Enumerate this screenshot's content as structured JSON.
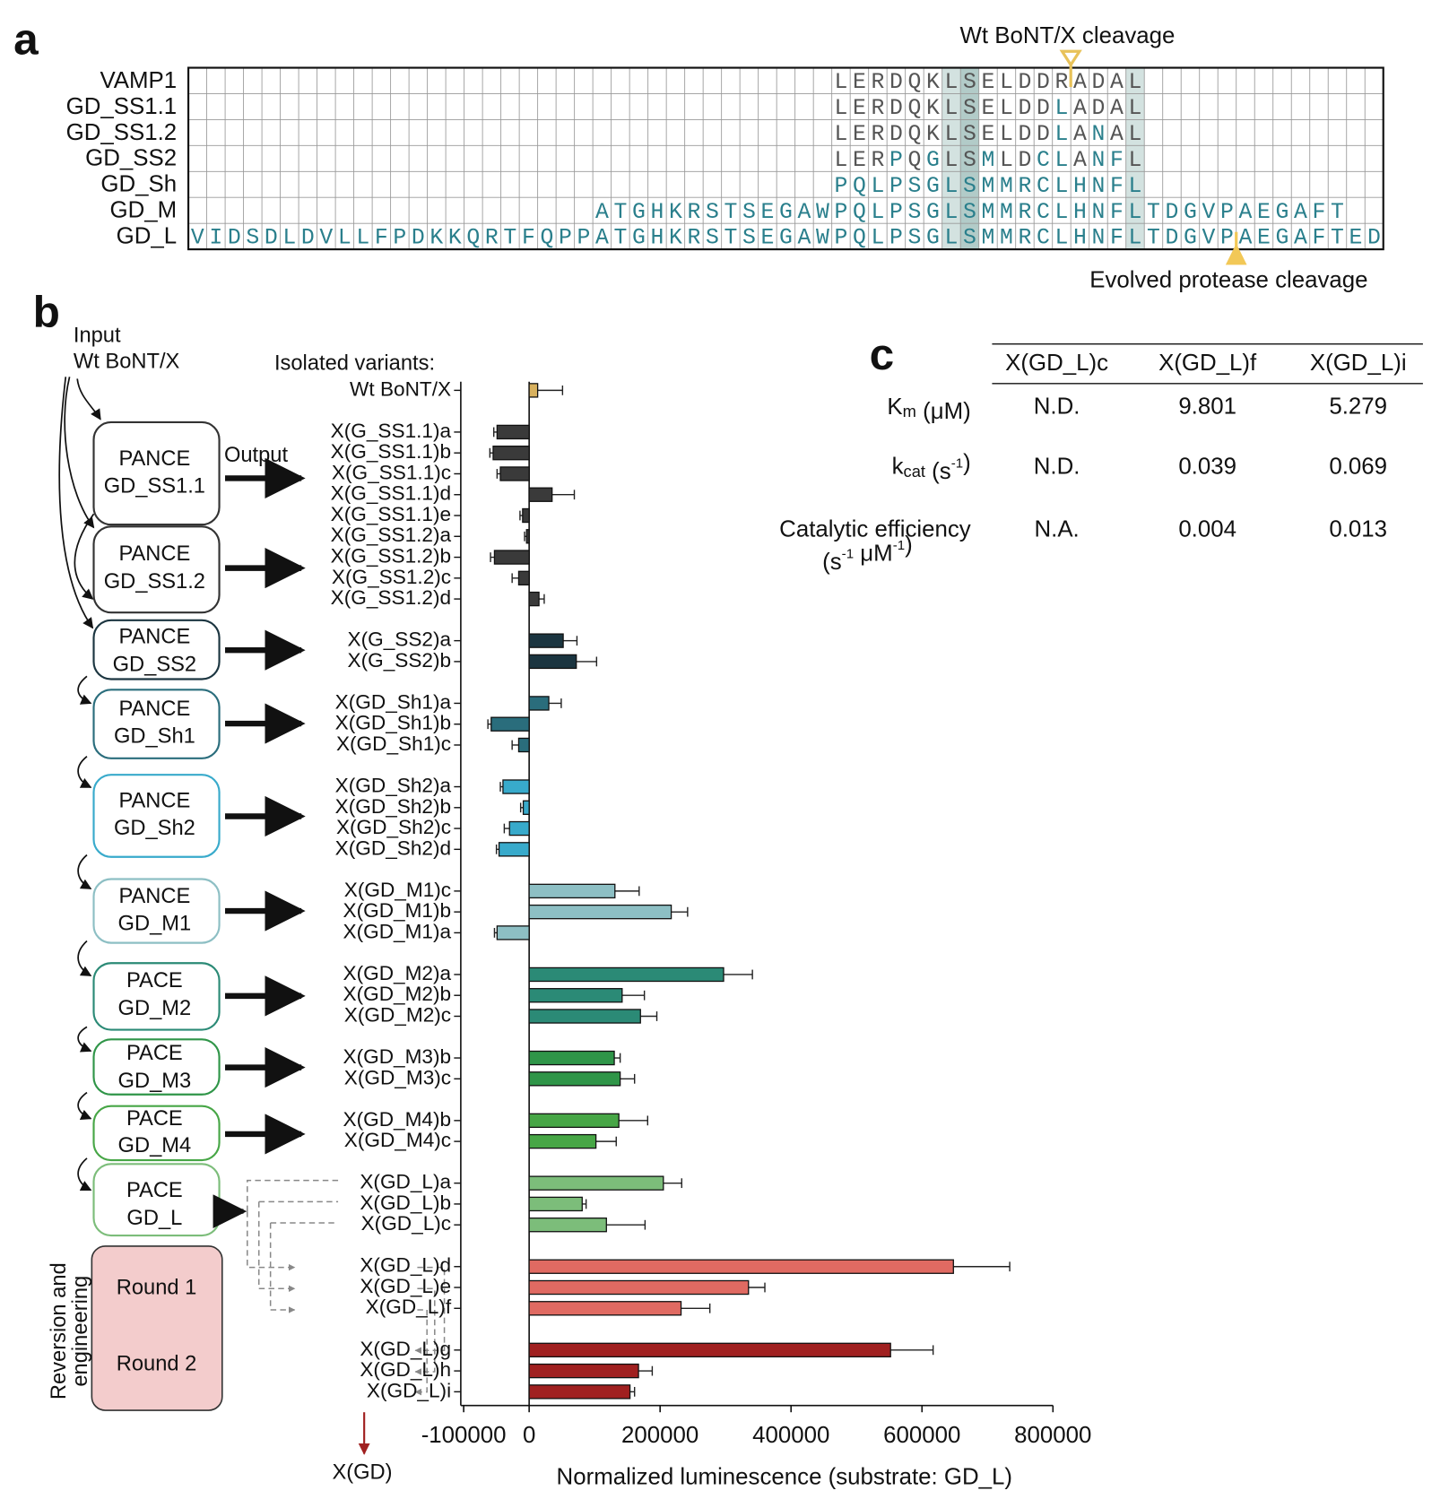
{
  "panel_labels": [
    "a",
    "b",
    "c"
  ],
  "alignment": {
    "wt_cleavage": "Wt BoNT/X cleavage",
    "evolved_cleavage": "Evolved protease cleavage",
    "rows": [
      {
        "name": "VAMP1",
        "sequence": "                                   LERDQKLSELDDRADAL"
      },
      {
        "name": "GD_SS1.1",
        "sequence": "                                   LERDQKLSELDDLADAL"
      },
      {
        "name": "GD_SS1.2",
        "sequence": "                                   LERDQKLSELDDLANAL"
      },
      {
        "name": "GD_SS2",
        "sequence": "                                   LERPQGLSMLDCLANFL"
      },
      {
        "name": "GD_Sh",
        "sequence": "                                   PQLPSGLSMMRCLHNFL"
      },
      {
        "name": "GD_M",
        "sequence": "                      ATGHKRSTSEGAWPQLPSGLSMMRCLHNFLTDGVPAEGAFT"
      },
      {
        "name": "GD_L",
        "sequence": "VIDSDLDVLLFPDKKQRTFQPPATGHKRSTSEGAWPQLPSGLSMMRCLHNFLTDGVPAEGAFTED"
      }
    ]
  },
  "chart_data": {
    "type": "bar",
    "orientation": "horizontal",
    "xlabel": "Normalized luminescence (substrate: GD_L)",
    "categories": [
      "Wt BoNT/X",
      "X(G_SS1.1)a",
      "X(G_SS1.1)b",
      "X(G_SS1.1)c",
      "X(G_SS1.1)d",
      "X(G_SS1.1)e",
      "X(G_SS1.2)a",
      "X(G_SS1.2)b",
      "X(G_SS1.2)c",
      "X(G_SS1.2)d",
      "X(G_SS2)a",
      "X(G_SS2)b",
      "X(GD_Sh1)a",
      "X(GD_Sh1)b",
      "X(GD_Sh1)c",
      "X(GD_Sh2)a",
      "X(GD_Sh2)b",
      "X(GD_Sh2)c",
      "X(GD_Sh2)d",
      "X(GD_M1)c",
      "X(GD_M1)b",
      "X(GD_M1)a",
      "X(GD_M2)a",
      "X(GD_M2)b",
      "X(GD_M2)c",
      "X(GD_M3)b",
      "X(GD_M3)c",
      "X(GD_M4)b",
      "X(GD_M4)c",
      "X(GD_L)a",
      "X(GD_L)b",
      "X(GD_L)c",
      "X(GD_L)d",
      "X(GD_L)e",
      "X(GD_L)f",
      "X(GD_L)g",
      "X(GD_L)h",
      "X(GD_L)i"
    ],
    "values": [
      13000,
      -49000,
      -55000,
      -44000,
      35000,
      -10000,
      -4000,
      -53000,
      -16000,
      15000,
      52000,
      72000,
      30000,
      -58000,
      -16000,
      -40000,
      -9000,
      -30000,
      -46000,
      131000,
      217000,
      -49000,
      297000,
      142000,
      170000,
      130000,
      139000,
      137000,
      102000,
      205000,
      81000,
      118000,
      648000,
      335000,
      232000,
      552000,
      167000,
      154000
    ],
    "errors": [
      38000,
      5000,
      5000,
      5000,
      34000,
      4000,
      3000,
      6000,
      10000,
      8000,
      21000,
      31000,
      19000,
      5000,
      10000,
      4000,
      4000,
      8000,
      4000,
      37000,
      25000,
      4000,
      44000,
      34000,
      25000,
      9000,
      22000,
      44000,
      31000,
      28000,
      6000,
      59000,
      86000,
      25000,
      44000,
      65000,
      21000,
      7000
    ],
    "colors": [
      "#d8b15e",
      "#3a3a3a",
      "#3a3a3a",
      "#3a3a3a",
      "#3a3a3a",
      "#3a3a3a",
      "#3a3a3a",
      "#3a3a3a",
      "#3a3a3a",
      "#3a3a3a",
      "#1b3540",
      "#1b3540",
      "#2a6d7c",
      "#2a6d7c",
      "#2a6d7c",
      "#38aacb",
      "#38aacb",
      "#38aacb",
      "#38aacb",
      "#8dbfc4",
      "#8dbfc4",
      "#8dbfc4",
      "#2b8a76",
      "#2b8a76",
      "#2b8a76",
      "#2f9548",
      "#2f9548",
      "#47a646",
      "#47a646",
      "#7cbd7a",
      "#7cbd7a",
      "#7cbd7a",
      "#e06a62",
      "#e06a62",
      "#e06a62",
      "#a02020",
      "#a02020",
      "#a02020"
    ],
    "xlim": [
      -100000,
      800000
    ],
    "xticks": [
      -100000,
      0,
      200000,
      400000,
      600000,
      800000
    ]
  },
  "schematic": {
    "input": "Input",
    "input_name": "Wt BoNT/X",
    "output": "Output",
    "isolated": "Isolated variants:",
    "stages": [
      {
        "method": "PANCE",
        "target": "GD_SS1.1",
        "color": "#333333"
      },
      {
        "method": "PANCE",
        "target": "GD_SS1.2",
        "color": "#333333"
      },
      {
        "method": "PANCE",
        "target": "GD_SS2",
        "color": "#1b3540"
      },
      {
        "method": "PANCE",
        "target": "GD_Sh1",
        "color": "#2a6d7c"
      },
      {
        "method": "PANCE",
        "target": "GD_Sh2",
        "color": "#38aacb"
      },
      {
        "method": "PANCE",
        "target": "GD_M1",
        "color": "#8dbfc4"
      },
      {
        "method": "PACE",
        "target": "GD_M2",
        "color": "#2b8a76"
      },
      {
        "method": "PACE",
        "target": "GD_M3",
        "color": "#2f9548"
      },
      {
        "method": "PACE",
        "target": "GD_M4",
        "color": "#47a646"
      },
      {
        "method": "PACE",
        "target": "GD_L",
        "color": "#7cbd7a"
      }
    ],
    "reversion": [
      "Reversion and",
      "engineering"
    ],
    "rounds": [
      {
        "name": "Round 1",
        "color": "#d6605a"
      },
      {
        "name": "Round 2",
        "color": "#a02020"
      }
    ],
    "final": "X(GD)"
  },
  "kinetics": {
    "columns": [
      {
        "name": "X(GD_L)c",
        "color": "#6ab575"
      },
      {
        "name": "X(GD_L)f",
        "color": "#e06a62"
      },
      {
        "name": "X(GD_L)i",
        "color": "#a02020"
      }
    ],
    "rows": [
      {
        "label": [
          [
            {
              "text": "K"
            },
            {
              "text": "m",
              "sub": true
            },
            {
              "text": " (μM)"
            }
          ]
        ],
        "cells": [
          "N.D.",
          9.801,
          5.279
        ]
      },
      {
        "label": [
          [
            {
              "text": "k"
            },
            {
              "text": "cat",
              "sub": true
            },
            {
              "text": " (s"
            },
            {
              "text": "-1",
              "sup": true
            },
            {
              "text": ")"
            }
          ]
        ],
        "cells": [
          "N.D.",
          0.039,
          0.069
        ]
      },
      {
        "label": [
          [
            {
              "text": "Catalytic efficiency"
            }
          ],
          [
            {
              "text": "(s"
            },
            {
              "text": "-1",
              "sup": true
            },
            {
              "text": " μM"
            },
            {
              "text": "-1",
              "sup": true
            },
            {
              "text": ")"
            }
          ]
        ],
        "cells": [
          "N.A.",
          0.004,
          0.013
        ]
      }
    ]
  }
}
